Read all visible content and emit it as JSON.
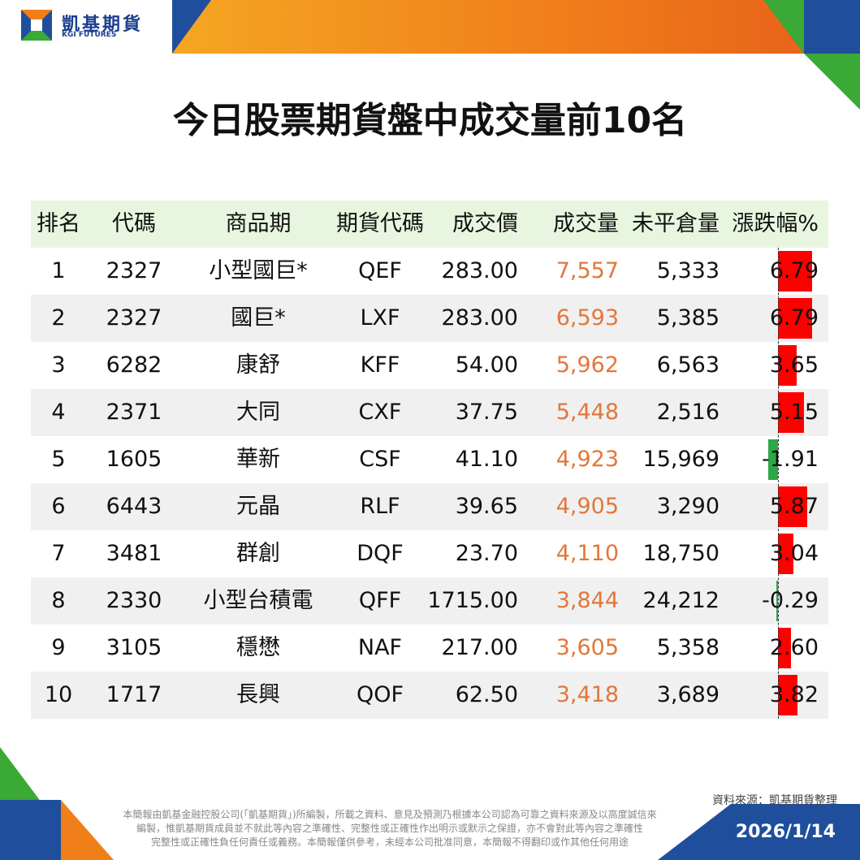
{
  "header": {
    "brand": "凱基期貨",
    "brand_en": "KGI FUTURES"
  },
  "title": "今日股票期貨盤中成交量前10名",
  "table": {
    "columns": [
      "排名",
      "代碼",
      "商品期",
      "期貨代碼",
      "成交價",
      "成交量",
      "未平倉量",
      "漲跌幅%"
    ],
    "rows": [
      [
        "1",
        "2327",
        "小型國巨*",
        "QEF",
        "283.00",
        "7,557",
        "5,333",
        "6.79"
      ],
      [
        "2",
        "2327",
        "國巨*",
        "LXF",
        "283.00",
        "6,593",
        "5,385",
        "6.79"
      ],
      [
        "3",
        "6282",
        "康舒",
        "KFF",
        "54.00",
        "5,962",
        "6,563",
        "3.65"
      ],
      [
        "4",
        "2371",
        "大同",
        "CXF",
        "37.75",
        "5,448",
        "2,516",
        "5.15"
      ],
      [
        "5",
        "1605",
        "華新",
        "CSF",
        "41.10",
        "4,923",
        "15,969",
        "-1.91"
      ],
      [
        "6",
        "6443",
        "元晶",
        "RLF",
        "39.65",
        "4,905",
        "3,290",
        "5.87"
      ],
      [
        "7",
        "3481",
        "群創",
        "DQF",
        "23.70",
        "4,110",
        "18,750",
        "3.04"
      ],
      [
        "8",
        "2330",
        "小型台積電",
        "QFF",
        "1715.00",
        "3,844",
        "24,212",
        "-0.29"
      ],
      [
        "9",
        "3105",
        "穩懋",
        "NAF",
        "217.00",
        "3,605",
        "5,358",
        "2.60"
      ],
      [
        "10",
        "1717",
        "長興",
        "QOF",
        "62.50",
        "3,418",
        "3,689",
        "3.82"
      ]
    ]
  },
  "footer": {
    "source": "資料來源：凱基期貨整理",
    "disclaimer": [
      "本簡報由凱基金融控股公司(「凱基期貨」)所編製，所載之資料、意見及預測乃根據本公司認為可靠之資料來源及以高度誠信來",
      "編製，惟凱基期貨成員並不就此等內容之準確性、完整性或正確性作出明示或默示之保證，亦不會對此等內容之準確性",
      "完整性或正確性負任何責任或義務。本簡報僅供參考，未經本公司批准同意，本簡報不得翻印或作其他任何用途"
    ],
    "date": "2026/1/14"
  }
}
